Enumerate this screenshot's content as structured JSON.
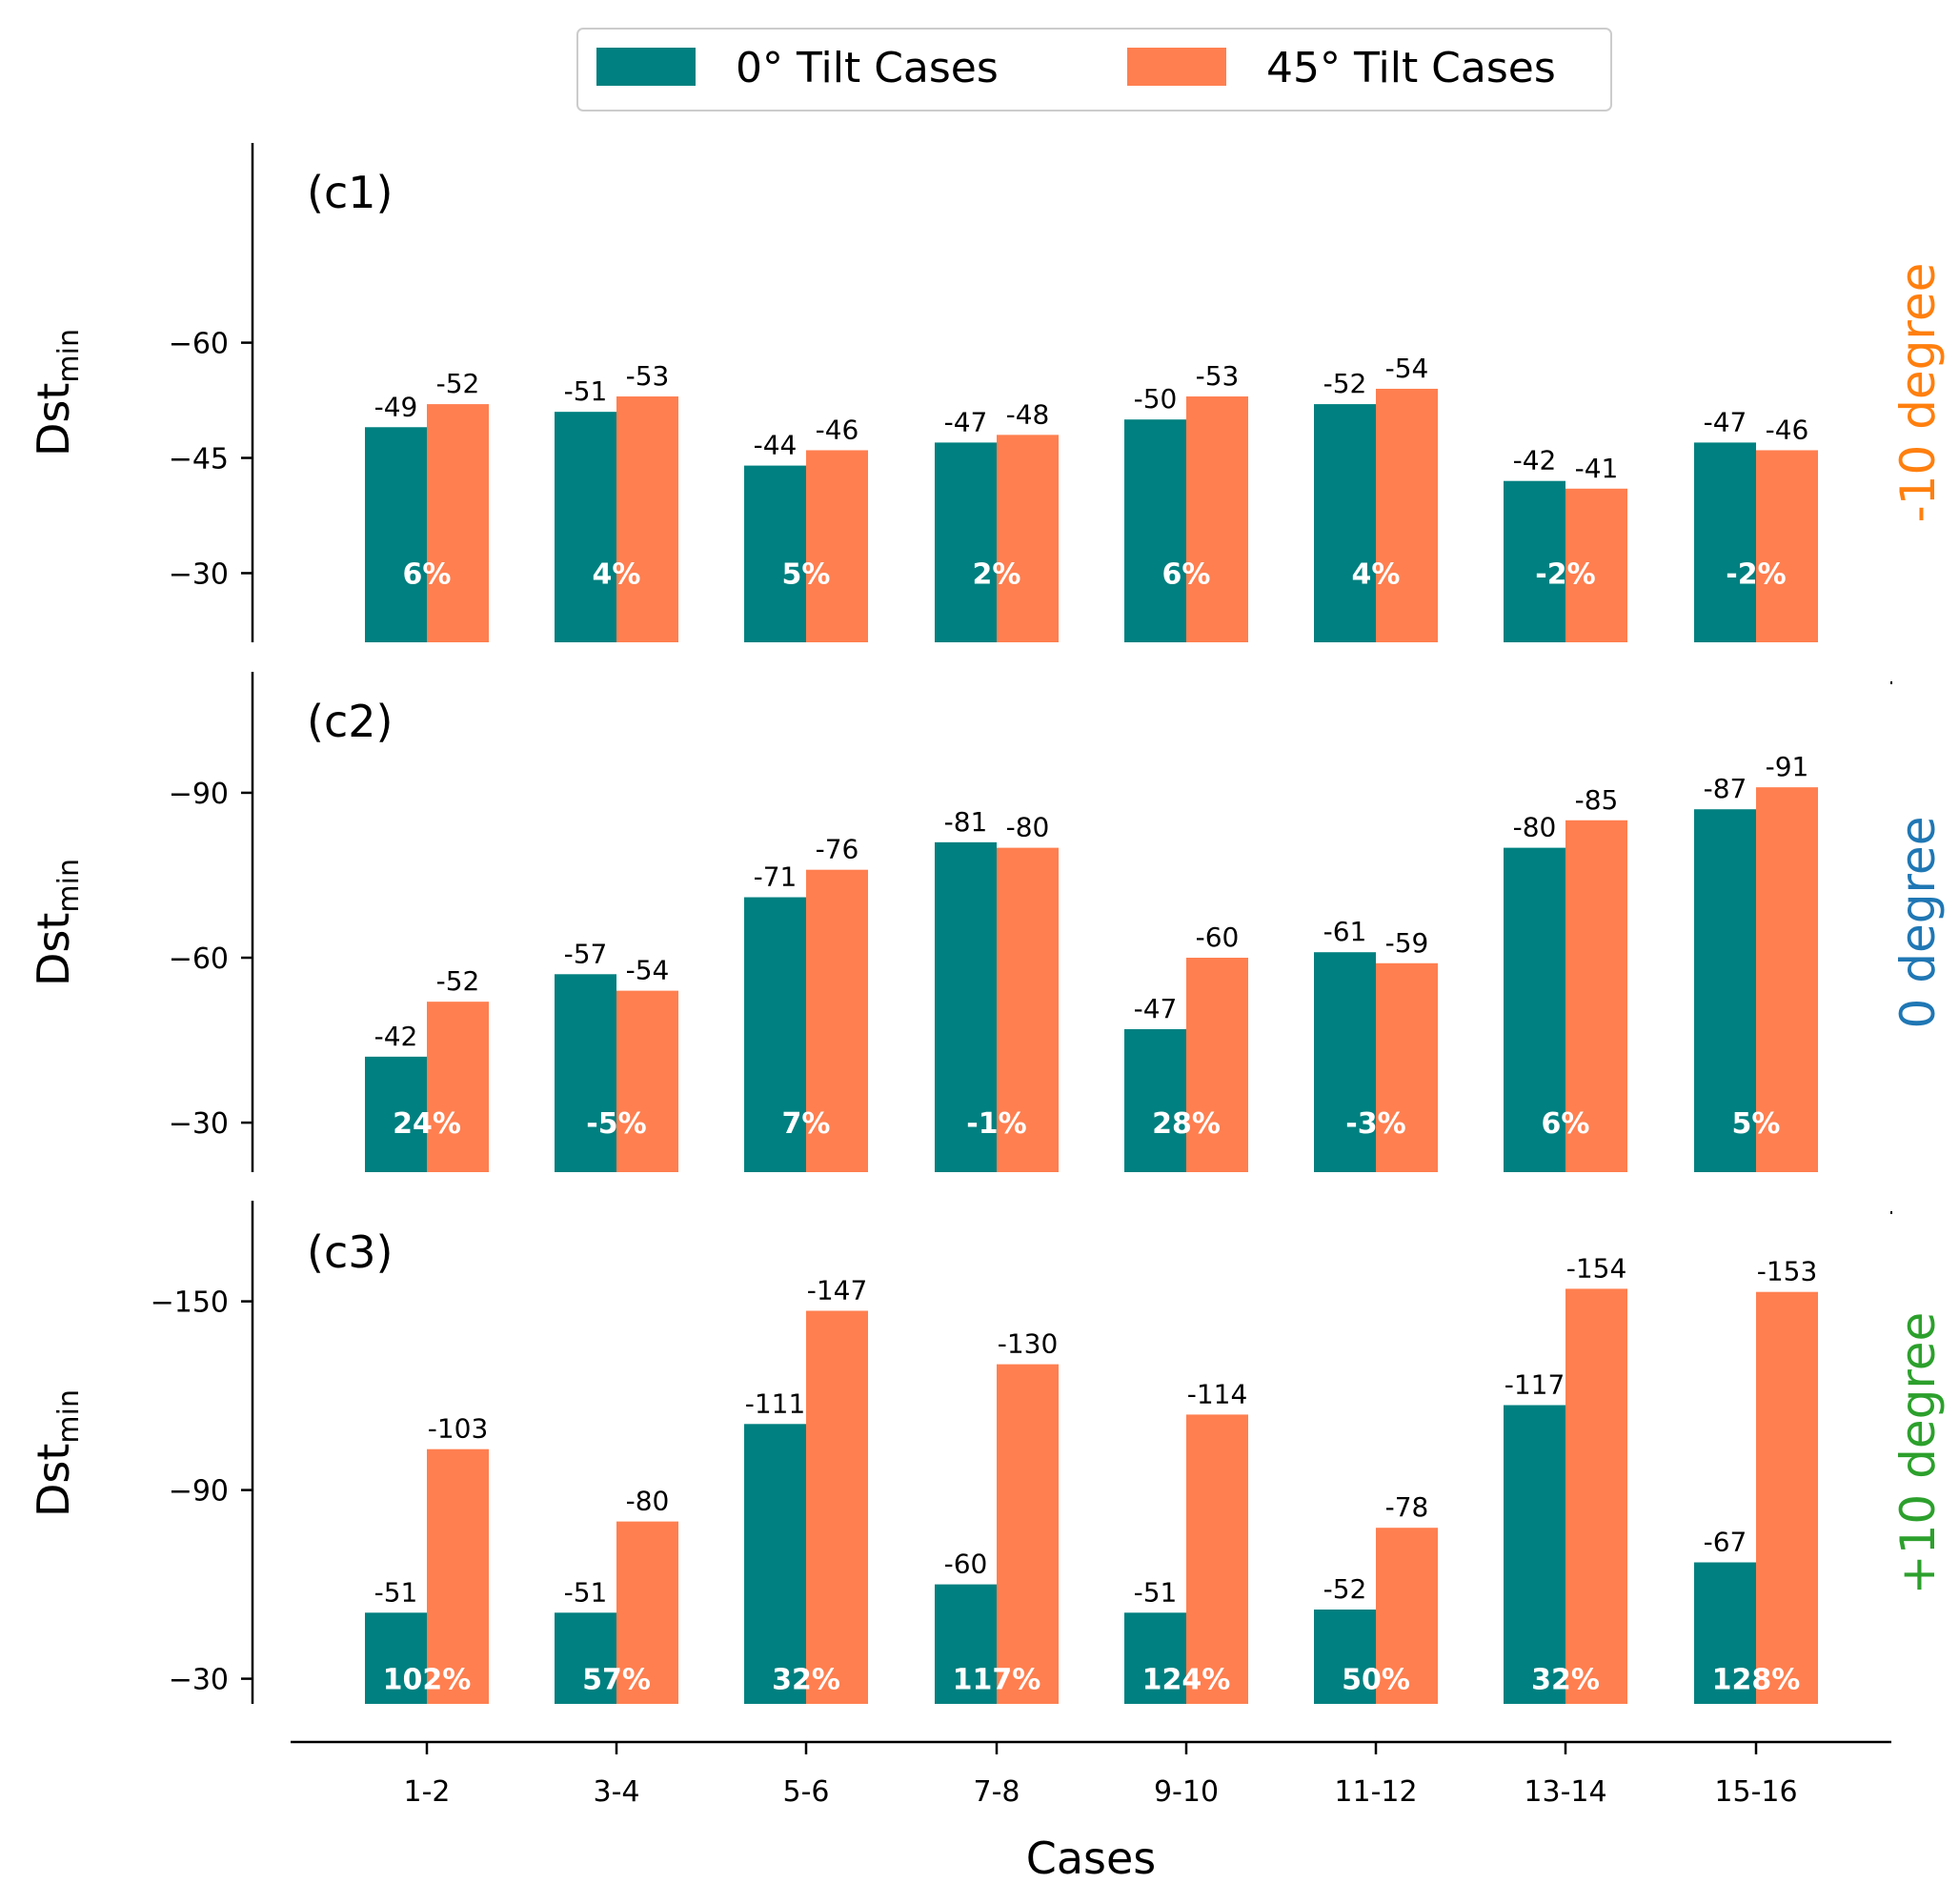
{
  "chart_data": {
    "type": "bar",
    "categories": [
      "1-2",
      "3-4",
      "5-6",
      "7-8",
      "9-10",
      "11-12",
      "13-14",
      "15-16"
    ],
    "xlabel": "Cases",
    "legend": {
      "placement": "top-center",
      "entries": [
        "0° Tilt Cases",
        "45° Tilt Cases"
      ],
      "degree_symbol": "°"
    },
    "colors": {
      "series0": "#008080",
      "series1": "#FF7F50"
    },
    "panels": [
      {
        "label": "(c1)",
        "ylabel": "Dst",
        "ylabel_sub": "min",
        "side_label": "-10 degree",
        "side_color": "#ff7f0e",
        "ylim": [
          -21,
          -86
        ],
        "yticks": [
          -60,
          -45,
          -30
        ],
        "ytick_labels": [
          "−60",
          "−45",
          "−30"
        ],
        "series": [
          {
            "name": "0° Tilt Cases",
            "values": [
              -49,
              -51,
              -44,
              -47,
              -50,
              -52,
              -42,
              -47
            ]
          },
          {
            "name": "45° Tilt Cases",
            "values": [
              -52,
              -53,
              -46,
              -48,
              -53,
              -54,
              -41,
              -46
            ]
          }
        ],
        "value_labels": [
          [
            "-49",
            "-51",
            "-44",
            "-47",
            "-50",
            "-52",
            "-42",
            "-47"
          ],
          [
            "-52",
            "-53",
            "-46",
            "-48",
            "-53",
            "-54",
            "-41",
            "-46"
          ]
        ],
        "percent_labels": [
          "6%",
          "4%",
          "5%",
          "2%",
          "6%",
          "4%",
          "-2%",
          "-2%"
        ]
      },
      {
        "label": "(c2)",
        "ylabel": "Dst",
        "ylabel_sub": "min",
        "side_label": "0 degree",
        "side_color": "#1f77b4",
        "ylim": [
          -21,
          -112
        ],
        "yticks": [
          -90,
          -60,
          -30
        ],
        "ytick_labels": [
          "−90",
          "−60",
          "−30"
        ],
        "series": [
          {
            "name": "0° Tilt Cases",
            "values": [
              -42,
              -57,
              -71,
              -81,
              -47,
              -61,
              -80,
              -87
            ]
          },
          {
            "name": "45° Tilt Cases",
            "values": [
              -52,
              -54,
              -76,
              -80,
              -60,
              -59,
              -85,
              -91
            ]
          }
        ],
        "value_labels": [
          [
            "-42",
            "-57",
            "-71",
            "-81",
            "-47",
            "-61",
            "-80",
            "-87"
          ],
          [
            "-52",
            "-54",
            "-76",
            "-80",
            "-60",
            "-59",
            "-85",
            "-91"
          ]
        ],
        "percent_labels": [
          "24%",
          "-5%",
          "7%",
          "-1%",
          "28%",
          "-3%",
          "6%",
          "5%"
        ]
      },
      {
        "label": "(c3)",
        "ylabel": "Dst",
        "ylabel_sub": "min",
        "side_label": "+10 degree",
        "side_color": "#2ca02c",
        "ylim": [
          -22,
          -182
        ],
        "yticks": [
          -150,
          -90,
          -30
        ],
        "ytick_labels": [
          "−150",
          "−90",
          "−30"
        ],
        "series": [
          {
            "name": "0° Tilt Cases",
            "values": [
              -51,
              -51,
              -111,
              -60,
              -51,
              -52,
              -117,
              -67
            ]
          },
          {
            "name": "45° Tilt Cases",
            "values": [
              -103,
              -80,
              -147,
              -130,
              -114,
              -78,
              -154,
              -153
            ]
          }
        ],
        "value_labels": [
          [
            "-51",
            "-51",
            "-111",
            "-60",
            "-51",
            "-52",
            "-117",
            "-67"
          ],
          [
            "-103",
            "-80",
            "-147",
            "-130",
            "-114",
            "-78",
            "-154",
            "-153"
          ]
        ],
        "percent_labels": [
          "102%",
          "57%",
          "32%",
          "117%",
          "124%",
          "50%",
          "32%",
          "128%"
        ]
      }
    ]
  }
}
